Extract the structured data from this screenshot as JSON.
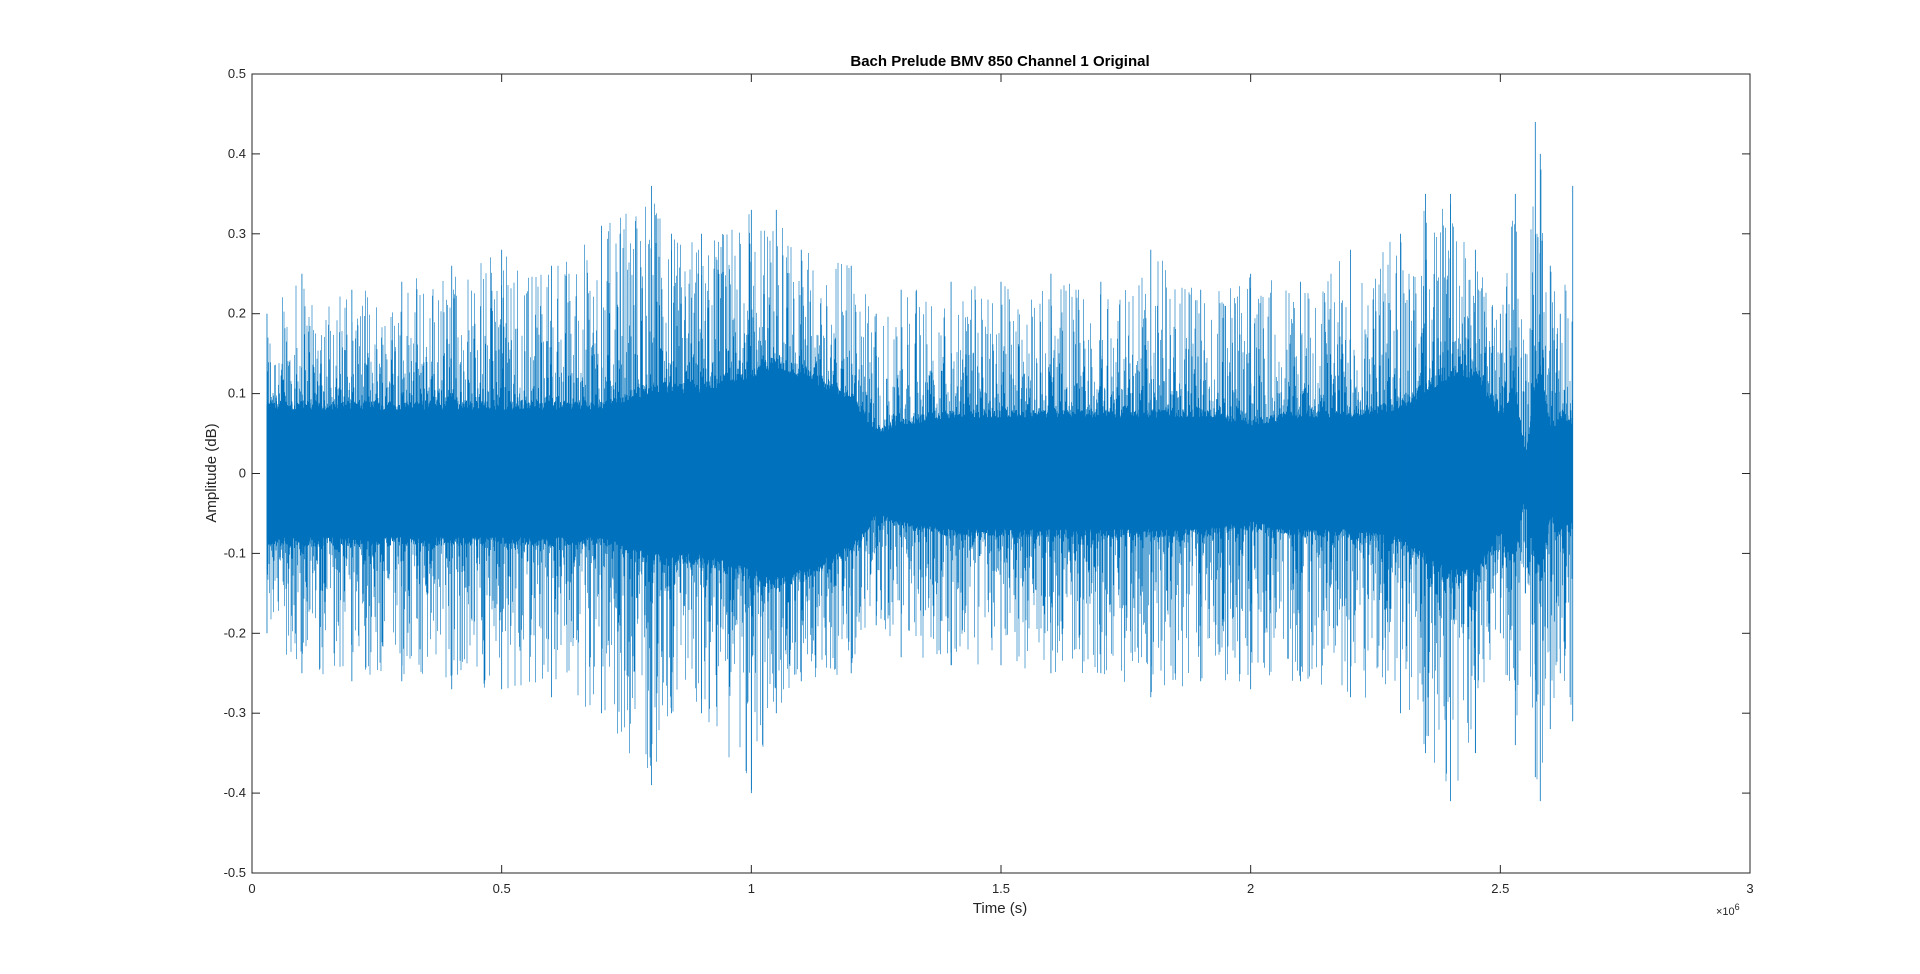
{
  "chart_data": {
    "type": "line",
    "title": "Bach Prelude BMV 850 Channel 1 Original",
    "xlabel": "Time (s)",
    "ylabel": "Amplitude (dB)",
    "xlim": [
      0,
      3000000
    ],
    "ylim": [
      -0.5,
      0.5
    ],
    "x_tick_values": [
      0,
      500000,
      1000000,
      1500000,
      2000000,
      2500000,
      3000000
    ],
    "x_tick_labels": [
      "0",
      "0.5",
      "1",
      "1.5",
      "2",
      "2.5",
      "3"
    ],
    "x_exponent_prefix": "×10",
    "x_exponent_power": "6",
    "y_tick_values": [
      0.5,
      0.4,
      0.3,
      0.2,
      0.1,
      0,
      -0.1,
      -0.2,
      -0.3,
      -0.4,
      -0.5
    ],
    "y_tick_labels": [
      "0.5",
      "0.4",
      "0.3",
      "0.2",
      "0.1",
      "0",
      "-0.1",
      "-0.2",
      "-0.3",
      "-0.4",
      "-0.5"
    ],
    "grid": false,
    "line_color": "#0072BD",
    "series": [
      {
        "x": [
          30000,
          100000,
          200000,
          300000,
          400000,
          500000,
          600000,
          700000,
          800000,
          840000,
          900000,
          1000000,
          1050000,
          1100000,
          1200000,
          1250000,
          1300000,
          1400000,
          1500000,
          1600000,
          1700000,
          1800000,
          1900000,
          2000000,
          2100000,
          2200000,
          2300000,
          2350000,
          2400000,
          2450000,
          2500000,
          2530000,
          2550000,
          2570000,
          2580000,
          2600000,
          2620000,
          2645000
        ],
        "core_amplitude": [
          0.08,
          0.08,
          0.08,
          0.08,
          0.08,
          0.08,
          0.08,
          0.08,
          0.1,
          0.1,
          0.1,
          0.12,
          0.13,
          0.12,
          0.09,
          0.05,
          0.06,
          0.07,
          0.07,
          0.07,
          0.07,
          0.07,
          0.07,
          0.06,
          0.07,
          0.07,
          0.08,
          0.1,
          0.12,
          0.12,
          0.07,
          0.1,
          0.02,
          0.1,
          0.12,
          0.05,
          0.07,
          0.06
        ],
        "envelope_high": [
          0.2,
          0.25,
          0.23,
          0.24,
          0.26,
          0.28,
          0.26,
          0.31,
          0.36,
          0.3,
          0.3,
          0.33,
          0.33,
          0.28,
          0.26,
          0.2,
          0.23,
          0.24,
          0.24,
          0.25,
          0.24,
          0.28,
          0.23,
          0.25,
          0.24,
          0.28,
          0.3,
          0.35,
          0.35,
          0.28,
          0.2,
          0.35,
          0.15,
          0.44,
          0.4,
          0.26,
          0.2,
          0.36
        ],
        "envelope_low": [
          -0.2,
          -0.25,
          -0.26,
          -0.26,
          -0.27,
          -0.27,
          -0.28,
          -0.3,
          -0.39,
          -0.3,
          -0.3,
          -0.4,
          -0.3,
          -0.26,
          -0.25,
          -0.19,
          -0.23,
          -0.24,
          -0.24,
          -0.25,
          -0.25,
          -0.28,
          -0.26,
          -0.27,
          -0.26,
          -0.28,
          -0.3,
          -0.35,
          -0.41,
          -0.35,
          -0.2,
          -0.34,
          -0.15,
          -0.38,
          -0.41,
          -0.32,
          -0.25,
          -0.31
        ]
      }
    ]
  }
}
